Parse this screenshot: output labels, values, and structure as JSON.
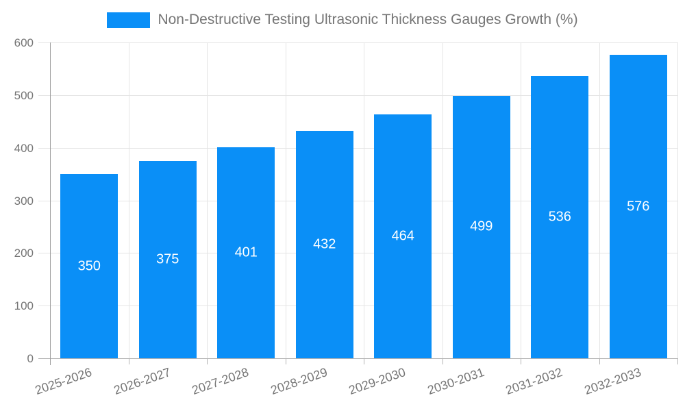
{
  "chart_data": {
    "type": "bar",
    "title": "Non-Destructive Testing Ultrasonic Thickness Gauges Growth (%)",
    "xlabel": "",
    "ylabel": "",
    "categories": [
      "2025-2026",
      "2026-2027",
      "2027-2028",
      "2028-2029",
      "2029-2030",
      "2030-2031",
      "2031-2032",
      "2032-2033"
    ],
    "values": [
      350,
      375,
      401,
      432,
      464,
      499,
      536,
      576
    ],
    "ylim": [
      0,
      600
    ],
    "yticks": [
      0,
      100,
      200,
      300,
      400,
      500,
      600
    ],
    "grid": true,
    "legend_position": "top",
    "x_tick_rotation_deg": -19,
    "style": {
      "bar_color": "#0a8ff7",
      "value_label_color": "#ffffff",
      "axis_text_color": "#757575",
      "gridline_color": "#e4e4e4",
      "y_axis_line_color": "#9e9e9e",
      "x_axis_line_color": "#b3b3b3",
      "tick_color": "#b3b3b3",
      "background": "#ffffff"
    }
  }
}
